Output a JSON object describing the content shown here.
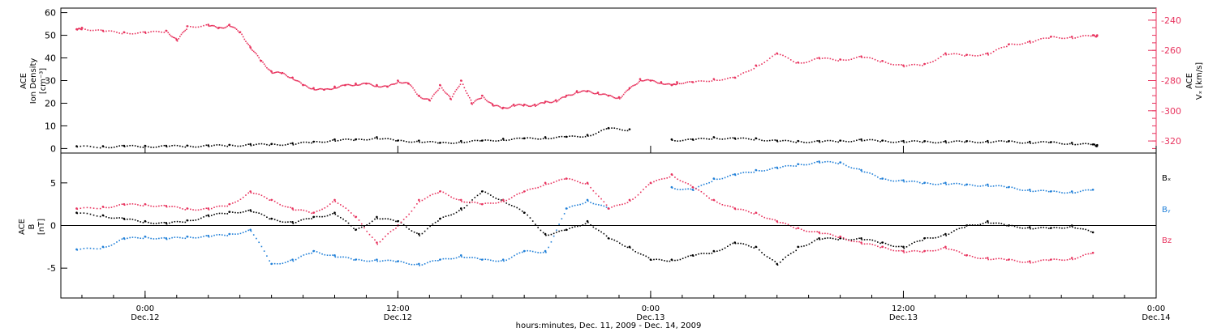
{
  "chart_data": [
    {
      "type": "scatter",
      "panel": "top",
      "ylabel_left": [
        "ACE",
        "Ion Density",
        "[cm⁻³]"
      ],
      "ylabel_right": [
        "ACE",
        "Vₓ [km/s]"
      ],
      "y_left_range": [
        -2,
        62
      ],
      "y_left_ticks": [
        "0",
        "10",
        "20",
        "30",
        "40",
        "50",
        "60"
      ],
      "y_right_range": [
        -328,
        -232
      ],
      "y_right_ticks": [
        "-240",
        "-260",
        "-280",
        "-300",
        "-320"
      ],
      "series": [
        {
          "axis": "left",
          "color": "#000000",
          "x": [
            -6.5,
            -4,
            -2,
            0,
            2,
            4,
            6,
            8,
            10,
            12,
            14,
            16,
            18,
            20,
            22,
            24,
            26,
            28,
            30,
            32,
            34,
            36,
            38,
            40,
            42,
            44,
            46,
            48,
            50,
            52,
            54,
            56,
            58,
            60,
            62,
            64,
            66,
            68,
            70,
            72,
            74,
            76,
            78,
            80,
            82,
            84,
            86,
            88,
            90,
            90.4
          ],
          "values": [
            1,
            1,
            1.2,
            1.2,
            1.2,
            1.3,
            1.4,
            1.6,
            1.9,
            2,
            2.3,
            3,
            4,
            4,
            5,
            3.5,
            3.5,
            2.5,
            3.3,
            3.5,
            4.3,
            4.5,
            5,
            5.2,
            6,
            9,
            8.5,
            null,
            4,
            4,
            5,
            4.5,
            4.5,
            3.5,
            3.3,
            3.3,
            3.5,
            4,
            3.5,
            3.3,
            3.2,
            3.2,
            3.2,
            3.3,
            3.2,
            3,
            2.8,
            2.5,
            1.8,
            1.5
          ]
        },
        {
          "axis": "right",
          "color": "#e8335e",
          "x": [
            -6.5,
            -6,
            -4,
            -2,
            0,
            2,
            3,
            4,
            6,
            7,
            8,
            9,
            10,
            11,
            12,
            13,
            14,
            15,
            16,
            17,
            18,
            19,
            20,
            21,
            22,
            23,
            24,
            25,
            26,
            27,
            28,
            29,
            30,
            31,
            32,
            33,
            34,
            35,
            36,
            37,
            38,
            39,
            40,
            41,
            42,
            43,
            44,
            45,
            46,
            47,
            48,
            49,
            50,
            50.5,
            52,
            54,
            56,
            58,
            60,
            62,
            64,
            66,
            68,
            70,
            72,
            74,
            76,
            78,
            80,
            82,
            84,
            86,
            88,
            90,
            90.4
          ],
          "values": [
            -246,
            -245,
            -247,
            -248,
            -248,
            -247,
            -253,
            -244,
            -243,
            -245,
            -243,
            -248,
            -258,
            -267,
            -274,
            -275,
            -278,
            -283,
            -285,
            -286,
            -284,
            -283,
            -282,
            -282,
            -283,
            -284,
            -280,
            -282,
            -290,
            -293,
            -283,
            -292,
            -280,
            -295,
            -290,
            -296,
            -298,
            -296,
            -296,
            -296,
            -294,
            -293,
            -290,
            -287,
            -287,
            -288,
            -290,
            -291,
            -285,
            -279,
            -280,
            -281,
            -283,
            -281,
            -281,
            -279,
            -278,
            -270,
            -262,
            -268,
            -265,
            -266,
            -264,
            -267,
            -270,
            -269,
            -262,
            -263,
            -262,
            -256,
            -254,
            -251,
            -251,
            -250,
            -250
          ]
        }
      ]
    },
    {
      "type": "scatter",
      "panel": "bottom",
      "ylabel_left": [
        "ACE",
        "B",
        "[nT]"
      ],
      "y_range": [
        -8.5,
        8.5
      ],
      "y_ticks": [
        "5",
        "0",
        "-5"
      ],
      "zero_line": true,
      "series": [
        {
          "name": "Bₓ",
          "color": "#000000",
          "x": [
            -6.5,
            -4,
            -2,
            0,
            2,
            4,
            6,
            8,
            10,
            12,
            14,
            16,
            18,
            20,
            22,
            24,
            26,
            28,
            30,
            32,
            34,
            36,
            38,
            40,
            42,
            44,
            46,
            48,
            50,
            52,
            54,
            56,
            58,
            60,
            62,
            64,
            66,
            68,
            70,
            72,
            74,
            76,
            78,
            80,
            82,
            84,
            86,
            88,
            90
          ],
          "values": [
            1.5,
            1.2,
            0.8,
            0.5,
            0.3,
            0.6,
            1.2,
            1.6,
            1.8,
            0.8,
            0.4,
            1,
            1.5,
            -0.5,
            1,
            0.5,
            -1,
            0.8,
            2,
            4,
            3,
            1.5,
            -1,
            -0.5,
            0.5,
            -1.5,
            -2.5,
            -4,
            -4,
            -3.5,
            -3,
            -2,
            -2.5,
            -4.5,
            -2.5,
            -1.5,
            -1.5,
            -1.5,
            -2,
            -2.5,
            -1.5,
            -1,
            0,
            0.5,
            0,
            -0.2,
            -0.3,
            0,
            -0.8
          ]
        },
        {
          "name": "Bᵧ",
          "color": "#1f7fd8",
          "x": [
            -6.5,
            -4,
            -2,
            0,
            2,
            4,
            6,
            8,
            10,
            12,
            14,
            16,
            18,
            20,
            22,
            24,
            26,
            28,
            30,
            32,
            34,
            36,
            38,
            40,
            42,
            44,
            46,
            48,
            50,
            52,
            54,
            56,
            58,
            60,
            62,
            64,
            66,
            68,
            70,
            72,
            74,
            76,
            78,
            80,
            82,
            84,
            86,
            88,
            90
          ],
          "values": [
            -2.8,
            -2.5,
            -1.5,
            -1.3,
            -1.5,
            -1.3,
            -1.2,
            -1,
            -0.5,
            -4.5,
            -4,
            -3,
            -3.5,
            -4,
            -4,
            -4.2,
            -4.5,
            -4,
            -3.5,
            -4,
            -4,
            -3,
            -3,
            2,
            3,
            2,
            null,
            null,
            4.5,
            4.2,
            5.5,
            6,
            6.5,
            6.8,
            7.2,
            7.5,
            7.4,
            6.5,
            5.5,
            5.3,
            5,
            5,
            4.8,
            4.8,
            4.5,
            4.2,
            4,
            4,
            4.2
          ]
        },
        {
          "name": "Bz",
          "color": "#e8335e",
          "x": [
            -6.5,
            -4,
            -2,
            0,
            2,
            4,
            6,
            8,
            10,
            12,
            14,
            16,
            18,
            20,
            22,
            24,
            26,
            28,
            30,
            32,
            34,
            36,
            38,
            40,
            42,
            44,
            46,
            48,
            50,
            52,
            54,
            56,
            58,
            60,
            62,
            64,
            66,
            68,
            70,
            72,
            74,
            76,
            78,
            80,
            82,
            84,
            86,
            88,
            90
          ],
          "values": [
            2,
            2.2,
            2.5,
            2.5,
            2.3,
            2,
            2,
            2.5,
            4,
            3,
            2,
            1.5,
            3,
            1,
            -2,
            0,
            3,
            4,
            3,
            2.5,
            3,
            4,
            5,
            5.5,
            5,
            2,
            3,
            5,
            6,
            4.5,
            3,
            2,
            1.5,
            0.5,
            -0.3,
            -0.8,
            -1.3,
            -2,
            -2.5,
            -3,
            -3,
            -2.5,
            -3.5,
            -3.8,
            -4,
            -4.2,
            -4,
            -3.8,
            -3.2
          ]
        }
      ]
    }
  ],
  "x_axis": {
    "range_hours": [
      -8,
      96
    ],
    "ticks": [
      {
        "hour": 0,
        "time": "0:00",
        "day": "Dec.12"
      },
      {
        "hour": 24,
        "time": "12:00",
        "day": "Dec.12"
      },
      {
        "hour": 48,
        "time": "0:00",
        "day": "Dec.13"
      },
      {
        "hour": 72,
        "time": "12:00",
        "day": "Dec.13"
      },
      {
        "hour": 96,
        "time": "0:00",
        "day": "Dec.14"
      }
    ],
    "label": "hours:minutes, Dec. 11, 2009 - Dec. 14, 2009"
  },
  "legend": [
    "Bₓ",
    "Bᵧ",
    "Bz"
  ]
}
